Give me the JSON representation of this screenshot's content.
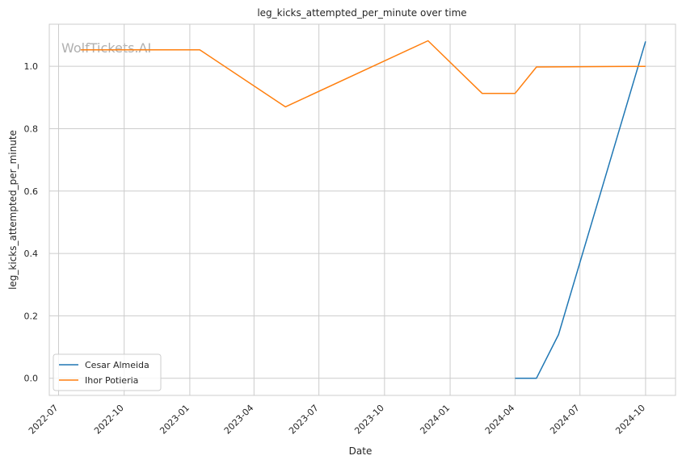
{
  "chart_data": {
    "type": "line",
    "title": "leg_kicks_attempted_per_minute over time",
    "xlabel": "Date",
    "ylabel": "leg_kicks_attempted_per_minute",
    "watermark": "WolfTickets.AI",
    "x_ticks": [
      "2022-07",
      "2022-10",
      "2023-01",
      "2023-04",
      "2023-07",
      "2023-10",
      "2024-01",
      "2024-04",
      "2024-07",
      "2024-10"
    ],
    "y_ticks": [
      "0.0",
      "0.2",
      "0.4",
      "0.6",
      "0.8",
      "1.0"
    ],
    "xlim": [
      "2022-06-18",
      "2024-11-12"
    ],
    "ylim": [
      -0.055,
      1.135
    ],
    "grid": true,
    "legend_position": "lower-left",
    "series": [
      {
        "name": "Cesar Almeida",
        "color": "#1f77b4",
        "points": [
          {
            "x": "2024-04-01",
            "y": 0.0
          },
          {
            "x": "2024-05-01",
            "y": 0.0
          },
          {
            "x": "2024-06-01",
            "y": 0.14
          },
          {
            "x": "2024-10-01",
            "y": 1.08
          }
        ]
      },
      {
        "name": "Ihor Potieria",
        "color": "#ff7f0e",
        "points": [
          {
            "x": "2022-08-01",
            "y": 1.053
          },
          {
            "x": "2023-01-15",
            "y": 1.053
          },
          {
            "x": "2023-05-15",
            "y": 0.87
          },
          {
            "x": "2023-12-01",
            "y": 1.082
          },
          {
            "x": "2024-02-15",
            "y": 0.913
          },
          {
            "x": "2024-04-01",
            "y": 0.913
          },
          {
            "x": "2024-05-01",
            "y": 0.998
          },
          {
            "x": "2024-10-01",
            "y": 1.0
          }
        ]
      }
    ]
  }
}
